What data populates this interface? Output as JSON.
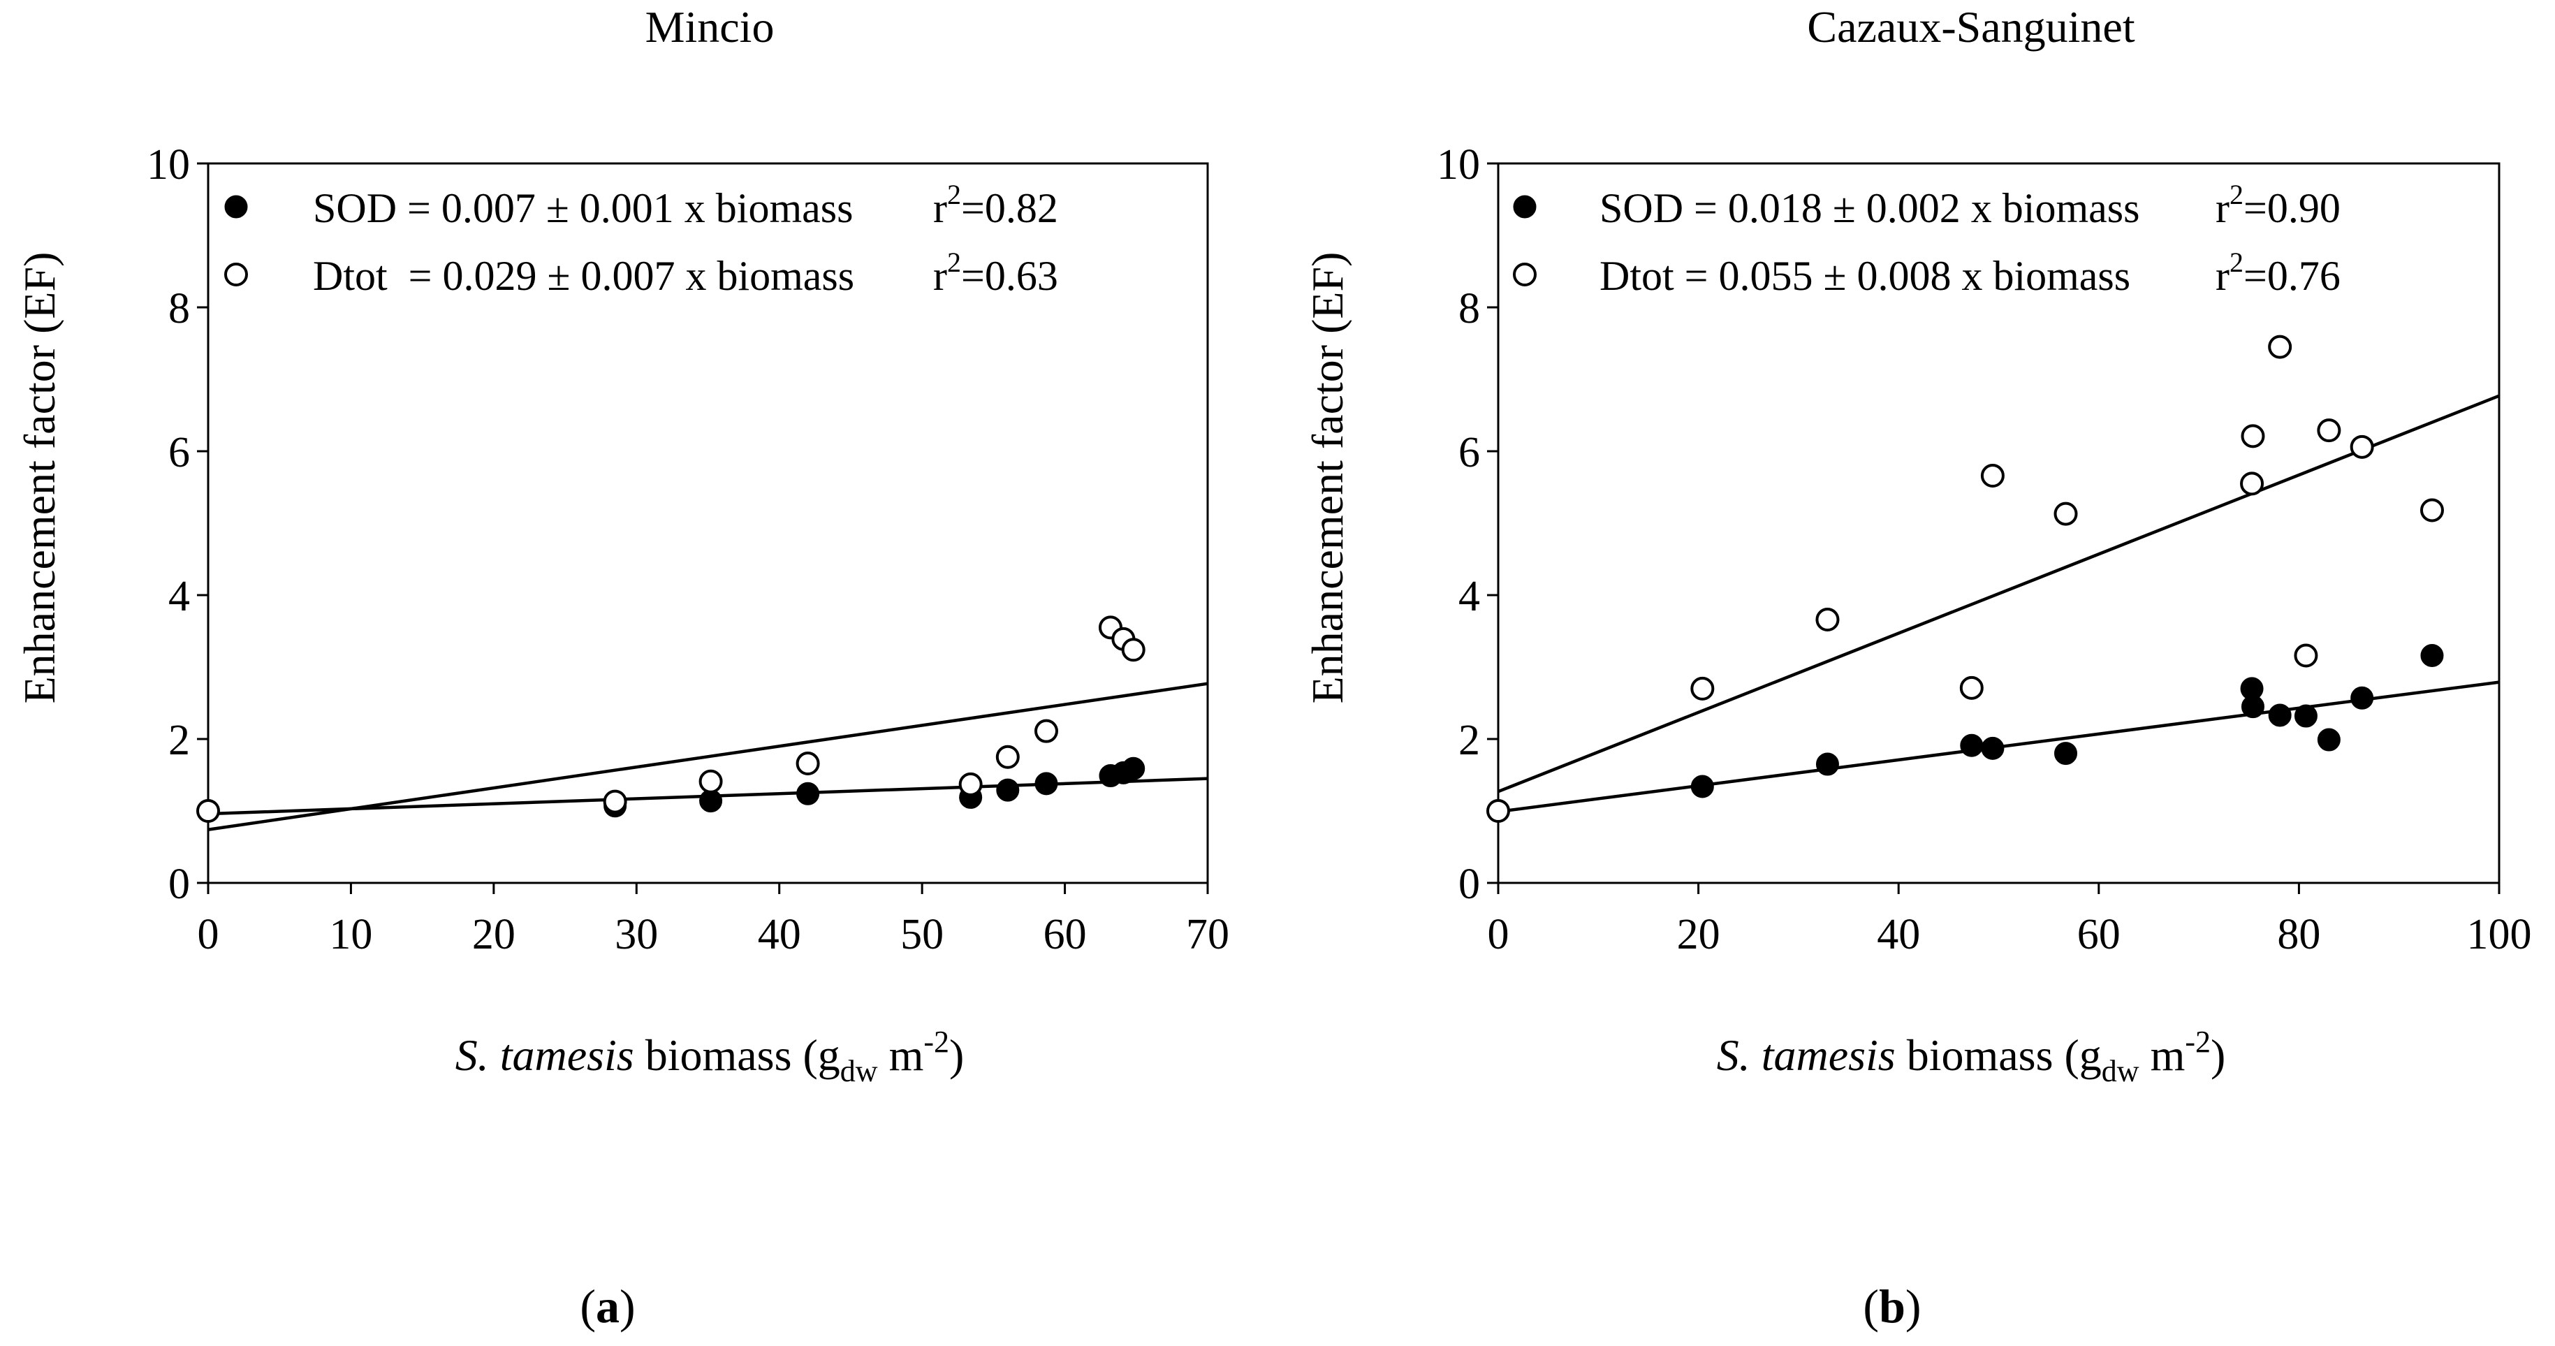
{
  "chart_data": [
    {
      "panel": "a",
      "panel_label": "(a)",
      "panel_letter": "a",
      "type": "scatter",
      "title": "Mincio",
      "ylabel": "Enhancement factor (EF)",
      "xlabel": {
        "species": "S. tamesis",
        "rest": " biomass (g",
        "sub": "dw",
        "unit": " m",
        "sup": "-2",
        "close": ")"
      },
      "xlim": [
        0,
        70
      ],
      "ylim": [
        0,
        10
      ],
      "xticks": [
        0,
        10,
        20,
        30,
        40,
        50,
        60,
        70
      ],
      "yticks": [
        0,
        2,
        4,
        6,
        8,
        10
      ],
      "legend": [
        {
          "label": "SOD = 0.007 ± 0.001 x biomass",
          "r2_prefix": "r",
          "r2_sup": "2",
          "r2_value": "=0.82",
          "marker": "filled"
        },
        {
          "label": "Dtot  = 0.029 ± 0.007 x biomass",
          "r2_prefix": "r",
          "r2_sup": "2",
          "r2_value": "=0.63",
          "marker": "open"
        }
      ],
      "series": [
        {
          "name": "SOD",
          "marker": "filled",
          "slope": 0.007,
          "intercept": 0.96,
          "x": [
            28.5,
            35.2,
            42.0,
            53.4,
            56.0,
            58.7,
            63.2,
            64.1,
            64.8
          ],
          "y": [
            1.07,
            1.14,
            1.24,
            1.19,
            1.29,
            1.38,
            1.49,
            1.53,
            1.59
          ]
        },
        {
          "name": "Dtot",
          "marker": "open",
          "slope": 0.029,
          "intercept": 0.74,
          "x": [
            0,
            28.5,
            35.2,
            42.0,
            53.4,
            56.0,
            58.7,
            63.2,
            64.1,
            64.8
          ],
          "y": [
            1.0,
            1.13,
            1.41,
            1.66,
            1.37,
            1.75,
            2.11,
            3.55,
            3.39,
            3.24
          ]
        }
      ]
    },
    {
      "panel": "b",
      "panel_label": "(b)",
      "panel_letter": "b",
      "type": "scatter",
      "title": "Cazaux-Sanguinet",
      "ylabel": "Enhancement factor (EF)",
      "xlabel": {
        "species": "S. tamesis",
        "rest": " biomass (g",
        "sub": "dw",
        "unit": " m",
        "sup": "-2",
        "close": ")"
      },
      "xlim": [
        0,
        100
      ],
      "ylim": [
        0,
        10
      ],
      "xticks": [
        0,
        20,
        40,
        60,
        80,
        100
      ],
      "yticks": [
        0,
        2,
        4,
        6,
        8,
        10
      ],
      "legend": [
        {
          "label": "SOD = 0.018 ± 0.002 x biomass",
          "r2_prefix": "r",
          "r2_sup": "2",
          "r2_value": "=0.90",
          "marker": "filled"
        },
        {
          "label": "Dtot = 0.055 ± 0.008 x biomass",
          "r2_prefix": "r",
          "r2_sup": "2",
          "r2_value": "=0.76",
          "marker": "open"
        }
      ],
      "series": [
        {
          "name": "SOD",
          "marker": "filled",
          "slope": 0.018,
          "intercept": 0.99,
          "x": [
            20.4,
            32.9,
            47.3,
            49.4,
            56.7,
            75.3,
            75.4,
            78.1,
            80.7,
            83.0,
            86.3,
            93.3
          ],
          "y": [
            1.34,
            1.65,
            1.91,
            1.87,
            1.8,
            2.7,
            2.45,
            2.33,
            2.32,
            1.99,
            2.57,
            3.16
          ]
        },
        {
          "name": "Dtot",
          "marker": "open",
          "slope": 0.055,
          "intercept": 1.27,
          "x": [
            0,
            20.4,
            32.9,
            47.3,
            49.4,
            56.7,
            75.3,
            75.4,
            78.1,
            80.7,
            83.0,
            86.3,
            93.3
          ],
          "y": [
            1.0,
            2.7,
            3.66,
            2.71,
            5.66,
            5.13,
            5.55,
            6.21,
            7.45,
            3.16,
            6.29,
            6.06,
            5.18
          ]
        }
      ]
    }
  ]
}
